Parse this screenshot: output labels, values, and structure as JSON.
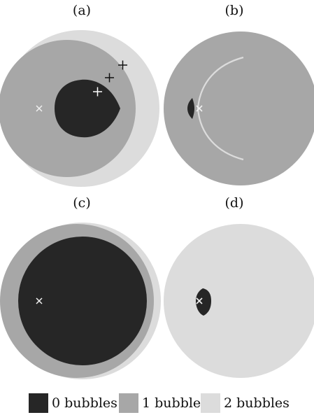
{
  "panels": [
    {
      "label": "(a)"
    },
    {
      "label": "(b)"
    },
    {
      "label": "(c)"
    },
    {
      "label": "(d)"
    }
  ],
  "legend": [
    {
      "label": "0 bubbles",
      "color": "#262626"
    },
    {
      "label": "1 bubble",
      "color": "#a7a7a7"
    },
    {
      "label": "2 bubbles",
      "color": "#dcdcdc"
    }
  ]
}
